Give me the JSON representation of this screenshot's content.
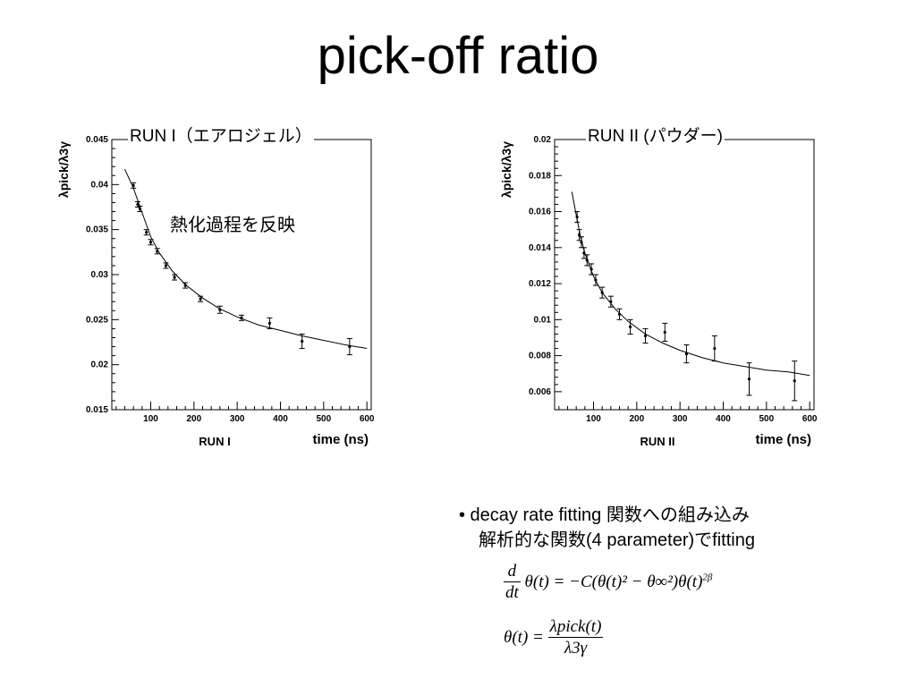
{
  "slide": {
    "title": "pick-off ratio"
  },
  "annotation": "熱化過程を反映",
  "bullet": {
    "line1": "• decay rate fitting 関数への組み込み",
    "line2": "解析的な関数(4 parameter)でfitting"
  },
  "formulas": {
    "f1_num": "d",
    "f1_den": "dt",
    "f1_rhs": "θ(t) = −C(θ(t)² − θ∞²)θ(t)",
    "f1_exp": "2β",
    "f2_lhs": "θ(t) =",
    "f2_num": "λpick(t)",
    "f2_den": "λ3γ"
  },
  "chart_data": [
    {
      "type": "scatter",
      "title": "RUN I（エアロジェル）",
      "xlabel": "time (ns)",
      "run_label": "RUN I",
      "ylabel": "λpick/λ3γ",
      "xlim": [
        10,
        610
      ],
      "ylim": [
        0.015,
        0.045
      ],
      "xticks": [
        100,
        200,
        300,
        400,
        500,
        600
      ],
      "yticks": [
        0.015,
        0.02,
        0.025,
        0.03,
        0.035,
        0.04,
        0.045
      ],
      "ytick_labels": [
        "0.015",
        "0.02",
        "0.025",
        "0.03",
        "0.035",
        "0.04",
        "0.045"
      ],
      "series": [
        {
          "x": [
            60,
            70,
            75,
            90,
            100,
            115,
            135,
            155,
            180,
            215,
            260,
            310,
            375,
            450,
            560
          ],
          "y": [
            0.0399,
            0.0378,
            0.0373,
            0.0347,
            0.0336,
            0.0326,
            0.031,
            0.0297,
            0.0288,
            0.0273,
            0.0261,
            0.0252,
            0.0246,
            0.0226,
            0.022
          ],
          "err": [
            0.0003,
            0.0003,
            0.0003,
            0.0003,
            0.0003,
            0.0003,
            0.0003,
            0.0003,
            0.0003,
            0.0003,
            0.0004,
            0.0003,
            0.0006,
            0.0008,
            0.0009
          ]
        }
      ],
      "fit": {
        "x": [
          40,
          60,
          80,
          100,
          120,
          150,
          180,
          220,
          260,
          300,
          350,
          400,
          450,
          500,
          550,
          600
        ],
        "y": [
          0.0417,
          0.0396,
          0.0369,
          0.0342,
          0.0324,
          0.0304,
          0.0289,
          0.0274,
          0.0262,
          0.0253,
          0.0244,
          0.0238,
          0.0232,
          0.0227,
          0.0222,
          0.0218
        ]
      }
    },
    {
      "type": "scatter",
      "title": "RUN II (パウダー)",
      "xlabel": "time (ns)",
      "run_label": "RUN II",
      "ylabel": "λpick/λ3γ",
      "xlim": [
        10,
        610
      ],
      "ylim": [
        0.005,
        0.02
      ],
      "xticks": [
        100,
        200,
        300,
        400,
        500,
        600
      ],
      "yticks": [
        0.006,
        0.008,
        0.01,
        0.012,
        0.014,
        0.016,
        0.018,
        0.02
      ],
      "ytick_labels": [
        "0.006",
        "0.008",
        "0.01",
        "0.012",
        "0.014",
        "0.016",
        "0.018",
        "0.02"
      ],
      "series": [
        {
          "x": [
            62,
            67,
            72,
            78,
            85,
            95,
            105,
            120,
            140,
            160,
            185,
            220,
            265,
            315,
            380,
            460,
            565
          ],
          "y": [
            0.0157,
            0.0147,
            0.0143,
            0.0137,
            0.0133,
            0.0128,
            0.0122,
            0.0115,
            0.011,
            0.0103,
            0.0096,
            0.0091,
            0.0093,
            0.0081,
            0.0084,
            0.0067,
            0.0066
          ],
          "err": [
            0.0003,
            0.0003,
            0.0003,
            0.0003,
            0.0003,
            0.0003,
            0.0003,
            0.0003,
            0.0003,
            0.0003,
            0.0004,
            0.0004,
            0.0005,
            0.0005,
            0.0007,
            0.0009,
            0.0011
          ]
        }
      ],
      "fit": {
        "x": [
          50,
          60,
          70,
          80,
          100,
          120,
          150,
          180,
          220,
          260,
          300,
          350,
          400,
          450,
          500,
          550,
          600
        ],
        "y": [
          0.0171,
          0.0158,
          0.0146,
          0.0137,
          0.0124,
          0.0115,
          0.0106,
          0.0099,
          0.0092,
          0.0087,
          0.0083,
          0.0079,
          0.0076,
          0.0074,
          0.0072,
          0.0071,
          0.0069
        ]
      }
    }
  ]
}
